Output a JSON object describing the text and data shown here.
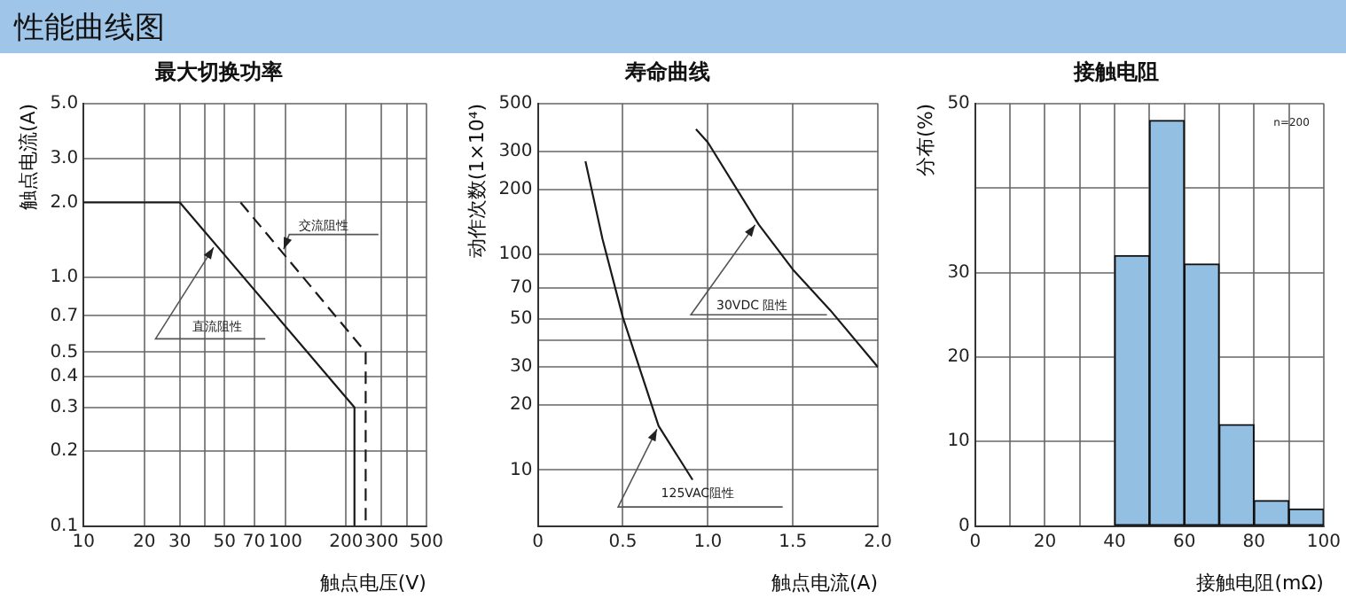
{
  "chart_data": [
    {
      "type": "other",
      "title": "性能曲线图"
    },
    {
      "type": "line",
      "title": "最大切换功率",
      "xlabel": "触点电压(V)",
      "ylabel": "触点电流(A)",
      "log": "xy",
      "grid": true,
      "legend": false,
      "marker": "none",
      "xlim": [
        10,
        500
      ],
      "xticks": [
        10,
        20,
        30,
        {
          "value": 40,
          "label": null
        },
        50,
        70,
        100,
        200,
        300,
        {
          "value": 400,
          "label": null
        },
        500
      ],
      "ylim": [
        0.1,
        5
      ],
      "yticks": [
        0.1,
        0.2,
        0.3,
        0.4,
        0.5,
        0.7,
        {
          "value": 1,
          "label": "1.0"
        },
        {
          "value": 2,
          "label": "2.0"
        },
        {
          "value": 3,
          "label": "3.0"
        },
        {
          "value": 5,
          "label": "5.0"
        }
      ],
      "series": [
        {
          "name": "直流阻性",
          "color": "#1a1a1a",
          "line_style": "solid",
          "x": [
            10,
            30,
            220,
            220
          ],
          "values": [
            2,
            2,
            0.3,
            0.1
          ]
        },
        {
          "name": "交流阻性",
          "color": "#1a1a1a",
          "line_style": "dashed",
          "x": [
            60,
            250,
            250
          ],
          "values": [
            2,
            0.5,
            0.1
          ]
        }
      ]
    },
    {
      "type": "line",
      "title": "寿命曲线",
      "xlabel": "触点电流(A)",
      "ylabel": "动作次数(1×10⁴)",
      "log": "y",
      "grid": true,
      "legend": false,
      "marker": "none",
      "xlim": [
        0,
        2
      ],
      "xticks": [
        0,
        0.5,
        {
          "value": 1,
          "label": "1.0"
        },
        1.5,
        {
          "value": 2,
          "label": "2.0"
        }
      ],
      "ylim": [
        5.5,
        500
      ],
      "yticks": [
        10,
        20,
        30,
        {
          "value": 40,
          "label": null
        },
        50,
        70,
        100,
        200,
        300,
        500
      ],
      "series": [
        {
          "name": "125VAC阻性",
          "color": "#1a1a1a",
          "line_style": "solid",
          "x": [
            0.28,
            0.38,
            0.5,
            0.71,
            0.91
          ],
          "values": [
            270,
            118,
            51,
            16,
            9
          ]
        },
        {
          "name": "30VDC 阻性",
          "color": "#1a1a1a",
          "line_style": "solid",
          "x": [
            0.93,
            1.0,
            1.3,
            1.5,
            1.72,
            2.0
          ],
          "values": [
            380,
            330,
            137,
            85,
            55,
            30
          ]
        }
      ]
    },
    {
      "type": "histogram",
      "title": "接触电阻",
      "xlabel": "接触电阻(mΩ)",
      "ylabel": "分布(%)",
      "grid": true,
      "legend": false,
      "color": "#93bfe3",
      "bins": [
        40,
        50,
        60,
        70,
        80,
        90,
        100
      ],
      "values": [
        32,
        48,
        31,
        12,
        3,
        2
      ],
      "xlim": [
        0,
        100
      ],
      "xticks": [
        0,
        {
          "value": 10,
          "label": null
        },
        20,
        {
          "value": 30,
          "label": null
        },
        40,
        {
          "value": 50,
          "label": null
        },
        60,
        {
          "value": 70,
          "label": null
        },
        80,
        {
          "value": 90,
          "label": null
        },
        100
      ],
      "ylim": [
        0,
        50
      ],
      "yticks": [
        0,
        10,
        20,
        30,
        {
          "value": 40,
          "label": null
        },
        50
      ],
      "annotations": [
        "n=200"
      ]
    }
  ]
}
